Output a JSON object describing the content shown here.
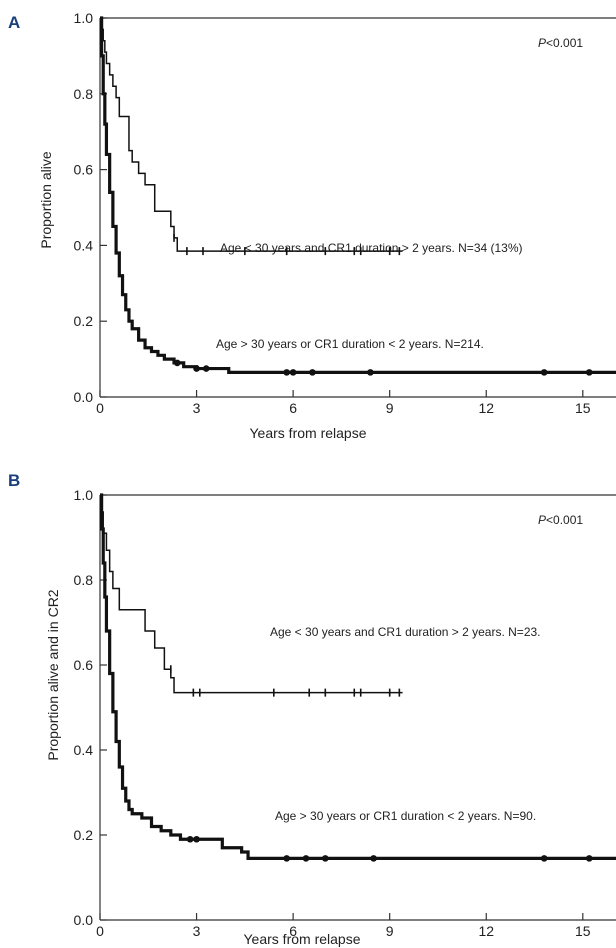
{
  "chart_data": [
    {
      "type": "line",
      "panel": "A",
      "pvalue_prefix": "P",
      "pvalue_suffix": "<0.001",
      "xlabel": "Years from relapse",
      "ylabel": "Proportion alive",
      "xlim": [
        0,
        16
      ],
      "ylim": [
        0,
        1.0
      ],
      "xticks": [
        0,
        3,
        6,
        9,
        12,
        15
      ],
      "yticks": [
        0.0,
        0.2,
        0.4,
        0.6,
        0.8,
        1.0
      ],
      "ytick_labels": [
        "0.0",
        "0.2",
        "0.4",
        "0.6",
        "0.8",
        "1.0"
      ],
      "series": [
        {
          "style": "thin",
          "label": "Age < 30 years and CR1 duration > 2 years. N=34 (13%)",
          "x": [
            0,
            0.05,
            0.1,
            0.15,
            0.2,
            0.3,
            0.4,
            0.5,
            0.6,
            0.9,
            1.0,
            1.2,
            1.4,
            1.7,
            2.2,
            2.3,
            2.4,
            9.4
          ],
          "y": [
            1.0,
            0.97,
            0.94,
            0.91,
            0.88,
            0.85,
            0.82,
            0.79,
            0.74,
            0.65,
            0.62,
            0.59,
            0.56,
            0.49,
            0.45,
            0.42,
            0.385,
            0.385
          ],
          "censored_x": [
            2.3,
            2.7,
            3.2,
            4.5,
            5.8,
            7.0,
            7.9,
            8.1,
            9.0,
            9.3
          ],
          "censored_y": [
            0.42,
            0.385,
            0.385,
            0.385,
            0.385,
            0.385,
            0.385,
            0.385,
            0.385,
            0.385
          ]
        },
        {
          "style": "thick",
          "label": "Age > 30 years or CR1 duration < 2 years. N=214.",
          "x": [
            0,
            0.05,
            0.1,
            0.15,
            0.2,
            0.3,
            0.4,
            0.5,
            0.6,
            0.7,
            0.8,
            0.9,
            1.0,
            1.2,
            1.4,
            1.6,
            1.8,
            2.0,
            2.3,
            2.6,
            3.0,
            3.5,
            4.0,
            16.2
          ],
          "y": [
            1.0,
            0.9,
            0.8,
            0.72,
            0.64,
            0.54,
            0.45,
            0.38,
            0.32,
            0.27,
            0.23,
            0.2,
            0.18,
            0.15,
            0.13,
            0.12,
            0.11,
            0.1,
            0.09,
            0.08,
            0.075,
            0.075,
            0.065,
            0.065
          ],
          "censored_x": [
            2.4,
            3.0,
            3.3,
            5.8,
            6.0,
            6.6,
            8.4,
            13.8,
            15.2
          ],
          "censored_y": [
            0.09,
            0.075,
            0.075,
            0.065,
            0.065,
            0.065,
            0.065,
            0.065,
            0.065
          ]
        }
      ]
    },
    {
      "type": "line",
      "panel": "B",
      "pvalue_prefix": "P",
      "pvalue_suffix": "<0.001",
      "xlabel": "Years from relapse",
      "ylabel": "Proportion alive and in CR2",
      "xlim": [
        0,
        16
      ],
      "ylim": [
        0,
        1.0
      ],
      "xticks": [
        0,
        3,
        6,
        9,
        12,
        15
      ],
      "yticks": [
        0.0,
        0.2,
        0.4,
        0.6,
        0.8,
        1.0
      ],
      "ytick_labels": [
        "0.0",
        "0.2",
        "0.4",
        "0.6",
        "0.8",
        "1.0"
      ],
      "series": [
        {
          "style": "thin",
          "label": "Age < 30 years and CR1 duration > 2 years. N=23.",
          "x": [
            0,
            0.05,
            0.1,
            0.2,
            0.3,
            0.4,
            0.6,
            1.4,
            1.7,
            2.0,
            2.2,
            2.3,
            9.4
          ],
          "y": [
            1.0,
            0.96,
            0.91,
            0.87,
            0.82,
            0.78,
            0.73,
            0.68,
            0.64,
            0.59,
            0.57,
            0.535,
            0.535
          ],
          "censored_x": [
            2.2,
            2.9,
            3.1,
            5.4,
            6.5,
            7.0,
            7.9,
            8.1,
            9.0,
            9.3
          ],
          "censored_y": [
            0.59,
            0.535,
            0.535,
            0.535,
            0.535,
            0.535,
            0.535,
            0.535,
            0.535,
            0.535
          ]
        },
        {
          "style": "thick",
          "label": "Age > 30 years or CR1 duration < 2 years. N=90.",
          "x": [
            0,
            0.05,
            0.1,
            0.15,
            0.2,
            0.3,
            0.4,
            0.5,
            0.6,
            0.7,
            0.8,
            0.9,
            1.0,
            1.3,
            1.6,
            1.9,
            2.2,
            2.5,
            3.8,
            4.4,
            4.6,
            16.2
          ],
          "y": [
            1.0,
            0.92,
            0.84,
            0.76,
            0.68,
            0.58,
            0.49,
            0.42,
            0.36,
            0.31,
            0.28,
            0.26,
            0.25,
            0.24,
            0.22,
            0.21,
            0.2,
            0.19,
            0.17,
            0.16,
            0.145,
            0.145
          ],
          "censored_x": [
            2.8,
            3.0,
            5.8,
            6.4,
            7.0,
            8.5,
            13.8,
            15.2
          ],
          "censored_y": [
            0.19,
            0.19,
            0.145,
            0.145,
            0.145,
            0.145,
            0.145,
            0.145
          ]
        }
      ]
    }
  ]
}
